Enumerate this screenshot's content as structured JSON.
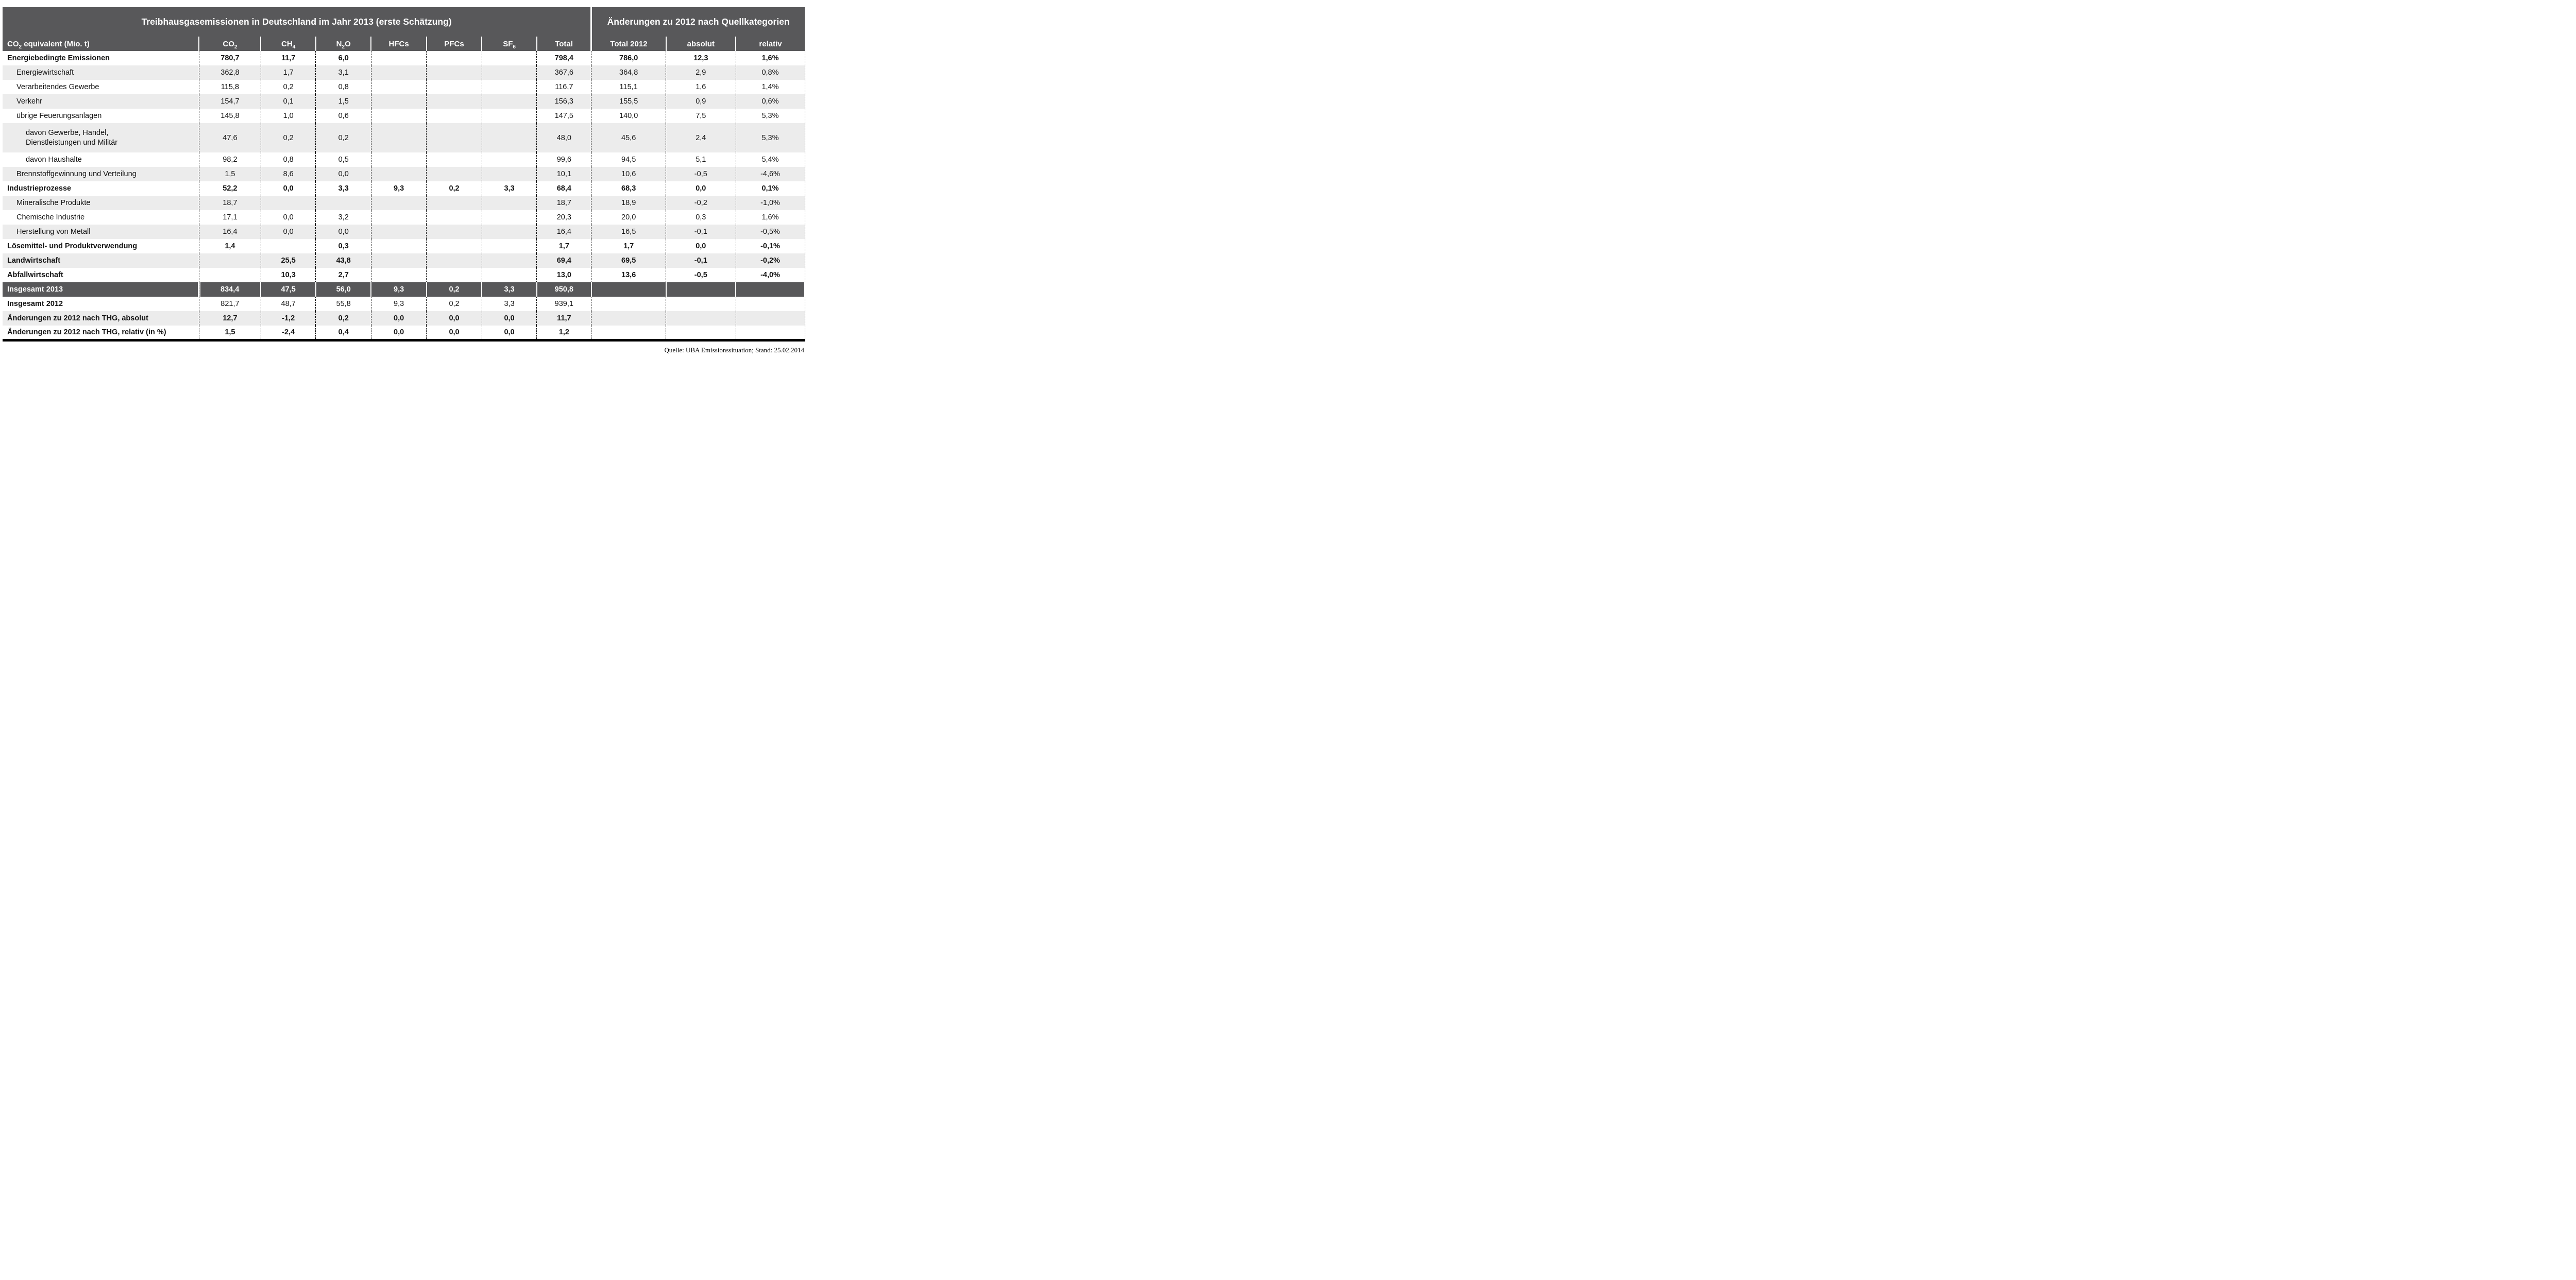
{
  "table": {
    "title_left": "Treibhausgasemissionen in Deutschland im Jahr 2013 (erste Schätzung)",
    "title_right": "Änderungen zu 2012 nach Quellkategorien",
    "unit_header": {
      "main": "CO",
      "sub": "2",
      "rest": " equivalent (Mio. t)"
    },
    "gas_headers": [
      {
        "key": "co2",
        "main": "CO",
        "sub": "2",
        "rest": ""
      },
      {
        "key": "ch4",
        "main": "CH",
        "sub": "4",
        "rest": ""
      },
      {
        "key": "n2o",
        "main": "N",
        "sub": "2",
        "rest": "O"
      },
      {
        "key": "hfcs",
        "main": "HFCs",
        "sub": "",
        "rest": ""
      },
      {
        "key": "pfcs",
        "main": "PFCs",
        "sub": "",
        "rest": ""
      },
      {
        "key": "sf6",
        "main": "SF",
        "sub": "6",
        "rest": ""
      },
      {
        "key": "total",
        "main": "Total",
        "sub": "",
        "rest": ""
      }
    ],
    "change_headers": [
      "Total 2012",
      "absolut",
      "relativ"
    ],
    "col_keys": [
      "co2",
      "ch4",
      "n2o",
      "hfcs",
      "pfcs",
      "sf6",
      "total",
      "total-2012",
      "absolut",
      "relativ"
    ],
    "rows": [
      {
        "label": "Energiebedingte Emissionen",
        "indent": 0,
        "label_bold": true,
        "value_bold": true,
        "shade": "white",
        "tall": false,
        "values": [
          "780,7",
          "11,7",
          "6,0",
          "",
          "",
          "",
          "798,4",
          "786,0",
          "12,3",
          "1,6%"
        ]
      },
      {
        "label": "Energiewirtschaft",
        "indent": 1,
        "label_bold": false,
        "value_bold": false,
        "shade": "gray",
        "tall": false,
        "values": [
          "362,8",
          "1,7",
          "3,1",
          "",
          "",
          "",
          "367,6",
          "364,8",
          "2,9",
          "0,8%"
        ]
      },
      {
        "label": "Verarbeitendes Gewerbe",
        "indent": 1,
        "label_bold": false,
        "value_bold": false,
        "shade": "white",
        "tall": false,
        "values": [
          "115,8",
          "0,2",
          "0,8",
          "",
          "",
          "",
          "116,7",
          "115,1",
          "1,6",
          "1,4%"
        ]
      },
      {
        "label": "Verkehr",
        "indent": 1,
        "label_bold": false,
        "value_bold": false,
        "shade": "gray",
        "tall": false,
        "values": [
          "154,7",
          "0,1",
          "1,5",
          "",
          "",
          "",
          "156,3",
          "155,5",
          "0,9",
          "0,6%"
        ]
      },
      {
        "label": "übrige Feuerungsanlagen",
        "indent": 1,
        "label_bold": false,
        "value_bold": false,
        "shade": "white",
        "tall": false,
        "values": [
          "145,8",
          "1,0",
          "0,6",
          "",
          "",
          "",
          "147,5",
          "140,0",
          "7,5",
          "5,3%"
        ]
      },
      {
        "label": "davon Gewerbe, Handel,\nDienstleistungen und Militär",
        "indent": 2,
        "label_bold": false,
        "value_bold": false,
        "shade": "gray",
        "tall": true,
        "values": [
          "47,6",
          "0,2",
          "0,2",
          "",
          "",
          "",
          "48,0",
          "45,6",
          "2,4",
          "5,3%"
        ]
      },
      {
        "label": "davon Haushalte",
        "indent": 2,
        "label_bold": false,
        "value_bold": false,
        "shade": "white",
        "tall": false,
        "values": [
          "98,2",
          "0,8",
          "0,5",
          "",
          "",
          "",
          "99,6",
          "94,5",
          "5,1",
          "5,4%"
        ]
      },
      {
        "label": "Brennstoffgewinnung und Verteilung",
        "indent": 1,
        "label_bold": false,
        "value_bold": false,
        "shade": "gray",
        "tall": false,
        "values": [
          "1,5",
          "8,6",
          "0,0",
          "",
          "",
          "",
          "10,1",
          "10,6",
          "-0,5",
          "-4,6%"
        ]
      },
      {
        "label": "Industrieprozesse",
        "indent": 0,
        "label_bold": true,
        "value_bold": true,
        "shade": "white",
        "tall": false,
        "values": [
          "52,2",
          "0,0",
          "3,3",
          "9,3",
          "0,2",
          "3,3",
          "68,4",
          "68,3",
          "0,0",
          "0,1%"
        ]
      },
      {
        "label": "Mineralische Produkte",
        "indent": 1,
        "label_bold": false,
        "value_bold": false,
        "shade": "gray",
        "tall": false,
        "values": [
          "18,7",
          "",
          "",
          "",
          "",
          "",
          "18,7",
          "18,9",
          "-0,2",
          "-1,0%"
        ]
      },
      {
        "label": "Chemische Industrie",
        "indent": 1,
        "label_bold": false,
        "value_bold": false,
        "shade": "white",
        "tall": false,
        "values": [
          "17,1",
          "0,0",
          "3,2",
          "",
          "",
          "",
          "20,3",
          "20,0",
          "0,3",
          "1,6%"
        ]
      },
      {
        "label": "Herstellung von Metall",
        "indent": 1,
        "label_bold": false,
        "value_bold": false,
        "shade": "gray",
        "tall": false,
        "values": [
          "16,4",
          "0,0",
          "0,0",
          "",
          "",
          "",
          "16,4",
          "16,5",
          "-0,1",
          "-0,5%"
        ]
      },
      {
        "label": "Lösemittel- und Produktverwendung",
        "indent": 0,
        "label_bold": true,
        "value_bold": true,
        "shade": "white",
        "tall": false,
        "values": [
          "1,4",
          "",
          "0,3",
          "",
          "",
          "",
          "1,7",
          "1,7",
          "0,0",
          "-0,1%"
        ]
      },
      {
        "label": "Landwirtschaft",
        "indent": 0,
        "label_bold": true,
        "value_bold": true,
        "shade": "gray",
        "tall": false,
        "values": [
          "",
          "25,5",
          "43,8",
          "",
          "",
          "",
          "69,4",
          "69,5",
          "-0,1",
          "-0,2%"
        ]
      },
      {
        "label": "Abfallwirtschaft",
        "indent": 0,
        "label_bold": true,
        "value_bold": true,
        "shade": "white",
        "tall": false,
        "values": [
          "",
          "10,3",
          "2,7",
          "",
          "",
          "",
          "13,0",
          "13,6",
          "-0,5",
          "-4,0%"
        ]
      },
      {
        "label": "Insgesamt 2013",
        "indent": 0,
        "label_bold": true,
        "value_bold": true,
        "shade": "dark",
        "tall": false,
        "values": [
          "834,4",
          "47,5",
          "56,0",
          "9,3",
          "0,2",
          "3,3",
          "950,8",
          "",
          "",
          ""
        ]
      },
      {
        "label": "Insgesamt 2012",
        "indent": 0,
        "label_bold": true,
        "value_bold": false,
        "shade": "white",
        "tall": false,
        "values": [
          "821,7",
          "48,7",
          "55,8",
          "9,3",
          "0,2",
          "3,3",
          "939,1",
          "",
          "",
          ""
        ]
      },
      {
        "label": "Änderungen zu 2012 nach THG, absolut",
        "indent": 0,
        "label_bold": true,
        "value_bold": true,
        "shade": "gray",
        "tall": false,
        "values": [
          "12,7",
          "-1,2",
          "0,2",
          "0,0",
          "0,0",
          "0,0",
          "11,7",
          "",
          "",
          ""
        ]
      },
      {
        "label": "Änderungen zu 2012 nach THG, relativ (in %)",
        "indent": 0,
        "label_bold": true,
        "value_bold": true,
        "shade": "white",
        "tall": false,
        "values": [
          "1,5",
          "-2,4",
          "0,4",
          "0,0",
          "0,0",
          "0,0",
          "1,2",
          "",
          "",
          ""
        ]
      }
    ]
  },
  "footer": {
    "source": "Quelle: UBA Emissionssituation; Stand: 25.02.2014"
  },
  "colors": {
    "header_bg": "#58585a",
    "stripe": "#ececec",
    "rule": "#000000",
    "header_text": "#ffffff"
  },
  "chart_data": {
    "type": "table",
    "title": "Treibhausgasemissionen in Deutschland im Jahr 2013 (erste Schätzung)",
    "subtitle": "Änderungen zu 2012 nach Quellkategorien",
    "unit": "CO2 equivalent (Mio. t)",
    "columns": [
      "CO2",
      "CH4",
      "N2O",
      "HFCs",
      "PFCs",
      "SF6",
      "Total",
      "Total 2012",
      "absolut",
      "relativ"
    ],
    "rows": [
      [
        "Energiebedingte Emissionen",
        "780,7",
        "11,7",
        "6,0",
        "",
        "",
        "",
        "798,4",
        "786,0",
        "12,3",
        "1,6%"
      ],
      [
        "Energiewirtschaft",
        "362,8",
        "1,7",
        "3,1",
        "",
        "",
        "",
        "367,6",
        "364,8",
        "2,9",
        "0,8%"
      ],
      [
        "Verarbeitendes Gewerbe",
        "115,8",
        "0,2",
        "0,8",
        "",
        "",
        "",
        "116,7",
        "115,1",
        "1,6",
        "1,4%"
      ],
      [
        "Verkehr",
        "154,7",
        "0,1",
        "1,5",
        "",
        "",
        "",
        "156,3",
        "155,5",
        "0,9",
        "0,6%"
      ],
      [
        "übrige Feuerungsanlagen",
        "145,8",
        "1,0",
        "0,6",
        "",
        "",
        "",
        "147,5",
        "140,0",
        "7,5",
        "5,3%"
      ],
      [
        "davon Gewerbe, Handel, Dienstleistungen und Militär",
        "47,6",
        "0,2",
        "0,2",
        "",
        "",
        "",
        "48,0",
        "45,6",
        "2,4",
        "5,3%"
      ],
      [
        "davon Haushalte",
        "98,2",
        "0,8",
        "0,5",
        "",
        "",
        "",
        "99,6",
        "94,5",
        "5,1",
        "5,4%"
      ],
      [
        "Brennstoffgewinnung und Verteilung",
        "1,5",
        "8,6",
        "0,0",
        "",
        "",
        "",
        "10,1",
        "10,6",
        "-0,5",
        "-4,6%"
      ],
      [
        "Industrieprozesse",
        "52,2",
        "0,0",
        "3,3",
        "9,3",
        "0,2",
        "3,3",
        "68,4",
        "68,3",
        "0,0",
        "0,1%"
      ],
      [
        "Mineralische Produkte",
        "18,7",
        "",
        "",
        "",
        "",
        "",
        "18,7",
        "18,9",
        "-0,2",
        "-1,0%"
      ],
      [
        "Chemische Industrie",
        "17,1",
        "0,0",
        "3,2",
        "",
        "",
        "",
        "20,3",
        "20,0",
        "0,3",
        "1,6%"
      ],
      [
        "Herstellung von Metall",
        "16,4",
        "0,0",
        "0,0",
        "",
        "",
        "",
        "16,4",
        "16,5",
        "-0,1",
        "-0,5%"
      ],
      [
        "Lösemittel- und Produktverwendung",
        "1,4",
        "",
        "0,3",
        "",
        "",
        "",
        "1,7",
        "1,7",
        "0,0",
        "-0,1%"
      ],
      [
        "Landwirtschaft",
        "",
        "25,5",
        "43,8",
        "",
        "",
        "",
        "69,4",
        "69,5",
        "-0,1",
        "-0,2%"
      ],
      [
        "Abfallwirtschaft",
        "",
        "10,3",
        "2,7",
        "",
        "",
        "",
        "13,0",
        "13,6",
        "-0,5",
        "-4,0%"
      ],
      [
        "Insgesamt 2013",
        "834,4",
        "47,5",
        "56,0",
        "9,3",
        "0,2",
        "3,3",
        "950,8",
        "",
        "",
        ""
      ],
      [
        "Insgesamt 2012",
        "821,7",
        "48,7",
        "55,8",
        "9,3",
        "0,2",
        "3,3",
        "939,1",
        "",
        "",
        ""
      ],
      [
        "Änderungen zu 2012 nach THG, absolut",
        "12,7",
        "-1,2",
        "0,2",
        "0,0",
        "0,0",
        "0,0",
        "11,7",
        "",
        "",
        ""
      ],
      [
        "Änderungen zu 2012 nach THG, relativ (in %)",
        "1,5",
        "-2,4",
        "0,4",
        "0,0",
        "0,0",
        "0,0",
        "1,2",
        "",
        "",
        ""
      ]
    ],
    "source_note": "Quelle: UBA Emissionssituation; Stand: 25.02.2014"
  }
}
